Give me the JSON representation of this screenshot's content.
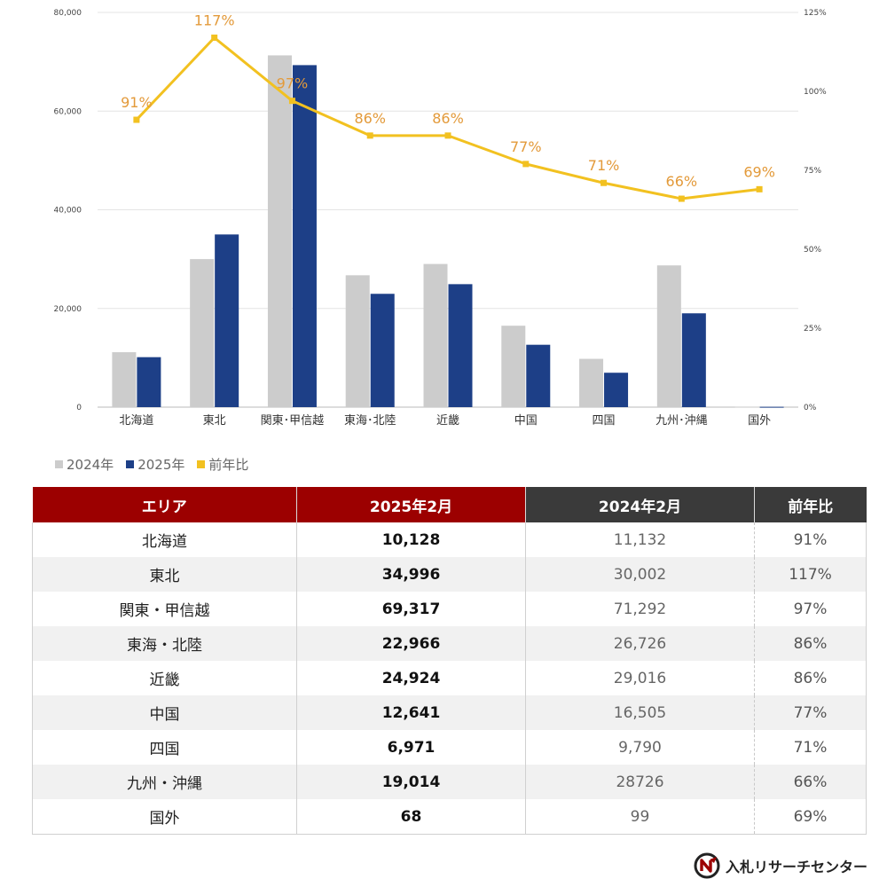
{
  "chart_data": {
    "type": "bar",
    "categories": [
      "北海道",
      "東北",
      "関東･甲信越",
      "東海･北陸",
      "近畿",
      "中国",
      "四国",
      "九州･沖縄",
      "国外"
    ],
    "series": [
      {
        "name": "2024年",
        "type": "bar",
        "color": "#cccccc",
        "values": [
          11132,
          30002,
          71292,
          26726,
          29016,
          16505,
          9790,
          28726,
          99
        ]
      },
      {
        "name": "2025年",
        "type": "bar",
        "color": "#1d3f87",
        "values": [
          10128,
          34996,
          69317,
          22966,
          24924,
          12641,
          6971,
          19014,
          68
        ]
      },
      {
        "name": "前年比",
        "type": "line",
        "color": "#f2c120",
        "axis": "right",
        "values": [
          91,
          117,
          97,
          86,
          86,
          77,
          71,
          66,
          69
        ],
        "labels": [
          "91%",
          "117%",
          "97%",
          "86%",
          "86%",
          "77%",
          "71%",
          "66%",
          "69%"
        ]
      }
    ],
    "ylim": [
      0,
      80000
    ],
    "yticks": [
      "0",
      "20,000",
      "40,000",
      "60,000",
      "80,000"
    ],
    "y2lim": [
      0,
      125
    ],
    "y2ticks": [
      "0%",
      "25%",
      "50%",
      "75%",
      "100%",
      "125%"
    ],
    "grid": true,
    "legend_position": "bottom-left",
    "label_color": "#e39a3a"
  },
  "legend": [
    {
      "label": "2024年",
      "color": "#cccccc"
    },
    {
      "label": "2025年",
      "color": "#1d3f87"
    },
    {
      "label": "前年比",
      "color": "#f2c120"
    }
  ],
  "table": {
    "headers": {
      "area": "エリア",
      "y2025": "2025年2月",
      "y2024": "2024年2月",
      "ratio": "前年比"
    },
    "rows": [
      {
        "area": "北海道",
        "y2025": "10,128",
        "y2024": "11,132",
        "ratio": "91%"
      },
      {
        "area": "東北",
        "y2025": "34,996",
        "y2024": "30,002",
        "ratio": "117%"
      },
      {
        "area": "関東・甲信越",
        "y2025": "69,317",
        "y2024": "71,292",
        "ratio": "97%"
      },
      {
        "area": "東海・北陸",
        "y2025": "22,966",
        "y2024": "26,726",
        "ratio": "86%"
      },
      {
        "area": "近畿",
        "y2025": "24,924",
        "y2024": "29,016",
        "ratio": "86%"
      },
      {
        "area": "中国",
        "y2025": "12,641",
        "y2024": "16,505",
        "ratio": "77%"
      },
      {
        "area": "四国",
        "y2025": "6,971",
        "y2024": "9,790",
        "ratio": "71%"
      },
      {
        "area": "九州・沖縄",
        "y2025": "19,014",
        "y2024": "28726",
        "ratio": "66%"
      },
      {
        "area": "国外",
        "y2025": "68",
        "y2024": "99",
        "ratio": "69%"
      }
    ]
  },
  "logo": {
    "text": "入札リサーチセンター",
    "icon": "nyusatsu-logo-icon",
    "colors": [
      "#9c0000",
      "#222222"
    ]
  }
}
